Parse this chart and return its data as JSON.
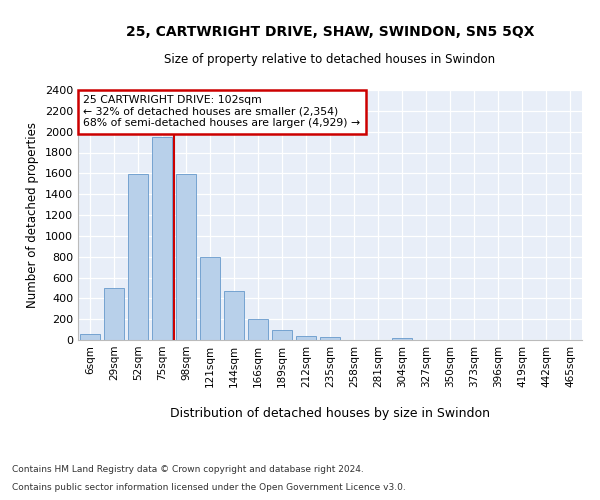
{
  "title_line1": "25, CARTWRIGHT DRIVE, SHAW, SWINDON, SN5 5QX",
  "title_line2": "Size of property relative to detached houses in Swindon",
  "xlabel": "Distribution of detached houses by size in Swindon",
  "ylabel": "Number of detached properties",
  "categories": [
    "6sqm",
    "29sqm",
    "52sqm",
    "75sqm",
    "98sqm",
    "121sqm",
    "144sqm",
    "166sqm",
    "189sqm",
    "212sqm",
    "235sqm",
    "258sqm",
    "281sqm",
    "304sqm",
    "327sqm",
    "350sqm",
    "373sqm",
    "396sqm",
    "419sqm",
    "442sqm",
    "465sqm"
  ],
  "bar_values": [
    60,
    500,
    1590,
    1950,
    1590,
    800,
    470,
    200,
    95,
    35,
    30,
    0,
    0,
    20,
    0,
    0,
    0,
    0,
    0,
    0,
    0
  ],
  "bar_color": "#b8d0ea",
  "bar_edge_color": "#6699cc",
  "vline_index": 3.5,
  "annotation_title": "25 CARTWRIGHT DRIVE: 102sqm",
  "annotation_line1": "← 32% of detached houses are smaller (2,354)",
  "annotation_line2": "68% of semi-detached houses are larger (4,929) →",
  "annotation_box_color": "#cc0000",
  "ylim": [
    0,
    2400
  ],
  "yticks": [
    0,
    200,
    400,
    600,
    800,
    1000,
    1200,
    1400,
    1600,
    1800,
    2000,
    2200,
    2400
  ],
  "footer_line1": "Contains HM Land Registry data © Crown copyright and database right 2024.",
  "footer_line2": "Contains public sector information licensed under the Open Government Licence v3.0.",
  "fig_facecolor": "#ffffff",
  "plot_bg_color": "#e8eef8"
}
